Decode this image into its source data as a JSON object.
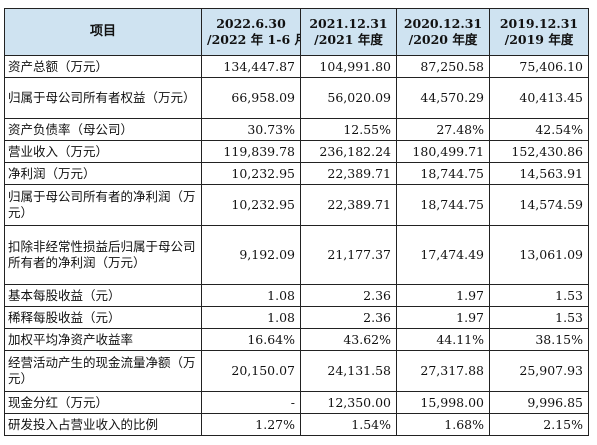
{
  "table": {
    "header": {
      "item": "项目",
      "columns": [
        {
          "line1": "2022.6.30",
          "line2": "/2022 年 1-6 月"
        },
        {
          "line1": "2021.12.31",
          "line2": "/2021 年度"
        },
        {
          "line1": "2020.12.31",
          "line2": "/2020 年度"
        },
        {
          "line1": "2019.12.31",
          "line2": "/2019 年度"
        }
      ]
    },
    "rows": [
      {
        "label": "资产总额（万元）",
        "values": [
          "134,447.87",
          "104,991.80",
          "87,250.58",
          "75,406.10"
        ]
      },
      {
        "label": "归属于母公司所有者权益（万元）",
        "values": [
          "66,958.09",
          "56,020.09",
          "44,570.29",
          "40,413.45"
        ]
      },
      {
        "label": "资产负债率（母公司）",
        "values": [
          "30.73%",
          "12.55%",
          "27.48%",
          "42.54%"
        ]
      },
      {
        "label": "营业收入（万元）",
        "values": [
          "119,839.78",
          "236,182.24",
          "180,499.71",
          "152,430.86"
        ]
      },
      {
        "label": "净利润（万元）",
        "values": [
          "10,232.95",
          "22,389.71",
          "18,744.75",
          "14,563.91"
        ]
      },
      {
        "label": "归属于母公司所有者的净利润（万元）",
        "values": [
          "10,232.95",
          "22,389.71",
          "18,744.75",
          "14,574.59"
        ]
      },
      {
        "label": "扣除非经常性损益后归属于母公司所有者的净利润（万元）",
        "values": [
          "9,192.09",
          "21,177.37",
          "17,474.49",
          "13,061.09"
        ]
      },
      {
        "label": "基本每股收益（元）",
        "values": [
          "1.08",
          "2.36",
          "1.97",
          "1.53"
        ]
      },
      {
        "label": "稀释每股收益（元）",
        "values": [
          "1.08",
          "2.36",
          "1.97",
          "1.53"
        ]
      },
      {
        "label": "加权平均净资产收益率",
        "values": [
          "16.64%",
          "43.62%",
          "44.11%",
          "38.15%"
        ]
      },
      {
        "label": "经营活动产生的现金流量净额（万元）",
        "values": [
          "20,150.07",
          "24,131.58",
          "27,317.88",
          "25,907.93"
        ]
      },
      {
        "label": "现金分红（万元）",
        "values": [
          "-",
          "12,350.00",
          "15,998.00",
          "9,996.85"
        ]
      },
      {
        "label": "研发投入占营业收入的比例",
        "values": [
          "1.27%",
          "1.54%",
          "1.68%",
          "2.15%"
        ]
      }
    ]
  },
  "colors": {
    "header_background": "#cfe3f1",
    "border": "#222222",
    "text": "#111111"
  }
}
